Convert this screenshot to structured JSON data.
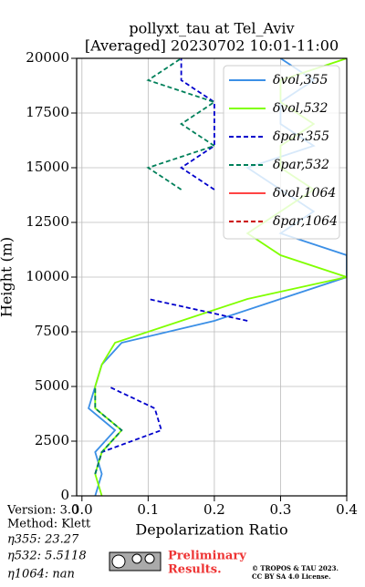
{
  "chart_data": {
    "type": "line",
    "title": [
      "pollyxt_tau at Tel_Aviv",
      "[Averaged] 20230702 10:01-11:00"
    ],
    "x_label": "Depolarization Ratio",
    "y_label": "Height (m)",
    "y": [
      0,
      1000,
      2000,
      3000,
      4000,
      5000,
      6000,
      7000,
      8000,
      9000,
      10000,
      11000,
      12000,
      13000,
      14000,
      15000,
      16000,
      17000,
      18000,
      19000,
      20000
    ],
    "series": [
      {
        "name": "δvol,355",
        "color": "#3b8fe6",
        "dash": false,
        "values": [
          0.02,
          0.03,
          0.02,
          0.05,
          0.01,
          0.02,
          0.03,
          0.06,
          0.2,
          0.3,
          0.4,
          0.4,
          0.3,
          0.35,
          0.3,
          0.25,
          0.35,
          0.3,
          0.3,
          0.35,
          0.3
        ]
      },
      {
        "name": "δvol,532",
        "color": "#80ff00",
        "dash": false,
        "values": [
          0.03,
          0.02,
          0.03,
          0.06,
          0.02,
          0.02,
          0.03,
          0.05,
          0.15,
          0.25,
          0.4,
          0.3,
          0.25,
          0.3,
          0.35,
          0.3,
          0.3,
          0.35,
          0.3,
          0.3,
          0.4
        ]
      },
      {
        "name": "δpar,355",
        "color": "#0000cc",
        "dash": true,
        "values": [
          null,
          0.02,
          0.03,
          0.12,
          0.11,
          0.04,
          null,
          null,
          0.25,
          0.1,
          null,
          null,
          null,
          null,
          0.2,
          0.15,
          0.2,
          0.2,
          0.2,
          0.15,
          0.15
        ]
      },
      {
        "name": "δpar,532",
        "color": "#00805a",
        "dash": true,
        "values": [
          null,
          0.02,
          0.03,
          0.06,
          0.02,
          0.02,
          null,
          null,
          null,
          null,
          null,
          null,
          null,
          null,
          0.15,
          0.1,
          0.2,
          0.15,
          0.2,
          0.1,
          0.15
        ]
      },
      {
        "name": "δvol,1064",
        "color": "#ff4444",
        "dash": false,
        "values": [
          null,
          null,
          null,
          null,
          null,
          null,
          null,
          null,
          null,
          null,
          null,
          null,
          null,
          null,
          null,
          null,
          null,
          null,
          null,
          null,
          null
        ]
      },
      {
        "name": "δpar,1064",
        "color": "#cc0000",
        "dash": true,
        "values": [
          null,
          null,
          null,
          null,
          null,
          null,
          null,
          null,
          null,
          null,
          null,
          null,
          null,
          null,
          null,
          null,
          null,
          null,
          null,
          null,
          null
        ]
      }
    ],
    "xlim": [
      -0.008,
      0.4
    ],
    "xticks": [
      {
        "value": 0,
        "label": "0.0"
      },
      0.1,
      0.2,
      0.3,
      0.4
    ],
    "ylim": [
      0,
      20000
    ],
    "yticks": [
      0,
      2500,
      5000,
      7500,
      10000,
      12500,
      15000,
      17500,
      20000
    ],
    "grid": true,
    "legend": "upper right",
    "info": [
      "Version: 3.0",
      "Method: Klett",
      "η355:  23.27",
      "η532: 5.5118",
      "η1064:    nan"
    ],
    "preliminary": [
      "Preliminary",
      "Results."
    ],
    "copyright": [
      "© TROPOS & TAU 2023.",
      "CC BY SA 4.0 License."
    ]
  }
}
